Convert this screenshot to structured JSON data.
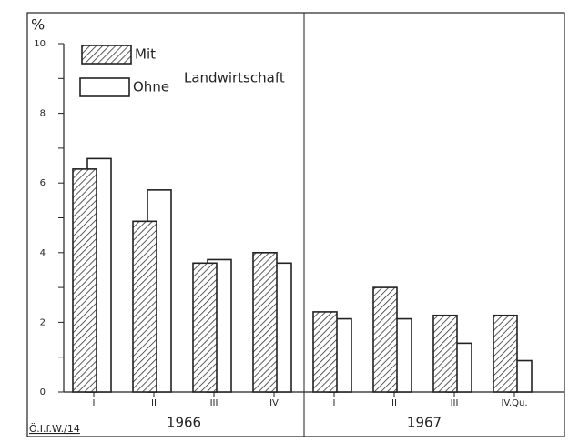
{
  "chart_data": {
    "type": "bar",
    "y_label": "%",
    "annotation": "Landwirtschaft",
    "footer": "Ö.I.f.W./14",
    "categories": [
      "I",
      "II",
      "III",
      "IV",
      "I",
      "II",
      "III",
      "IV.Qu."
    ],
    "groups": [
      "1966",
      "1967"
    ],
    "series": [
      {
        "name": "Mit",
        "color": "#222222",
        "hatch": true,
        "values": [
          6.4,
          4.9,
          3.7,
          4.0,
          2.3,
          3.0,
          2.2,
          2.2
        ]
      },
      {
        "name": "Ohne",
        "color": "#222222",
        "hatch": false,
        "values": [
          6.7,
          5.8,
          3.8,
          3.7,
          2.1,
          2.1,
          1.4,
          0.9
        ]
      }
    ],
    "ylim": [
      0,
      10
    ],
    "yticks": [
      0,
      2,
      4,
      6,
      8,
      10
    ],
    "yminor_ticks": [
      1,
      3,
      5,
      7,
      9
    ]
  }
}
